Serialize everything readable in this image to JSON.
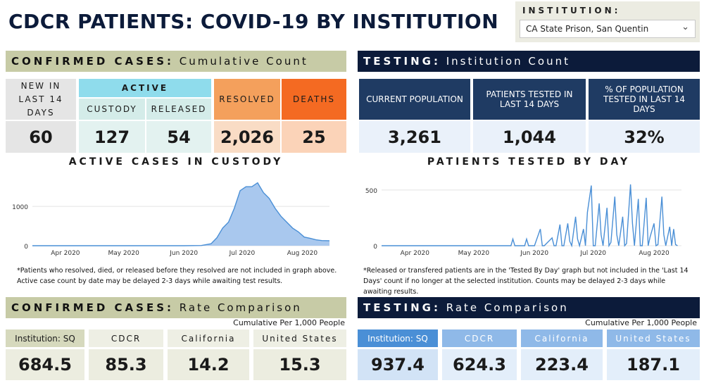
{
  "header": {
    "title": "CDCR PATIENTS: COVID-19 BY INSTITUTION"
  },
  "institution": {
    "label": "INSTITUTION:",
    "selected": "CA State Prison, San Quentin"
  },
  "confirmed": {
    "band_bold": "CONFIRMED CASES:",
    "band_light": "Cumulative Count",
    "new14_label": "NEW IN LAST 14 DAYS",
    "new14_value": "60",
    "active_label": "ACTIVE",
    "custody_label": "CUSTODY",
    "custody_value": "127",
    "released_label": "RELEASED",
    "released_value": "54",
    "resolved_label": "RESOLVED",
    "resolved_value": "2,026",
    "deaths_label": "DEATHS",
    "deaths_value": "25"
  },
  "testing": {
    "band_bold": "TESTING:",
    "band_light": "Institution Count",
    "pop_label": "CURRENT POPULATION",
    "pop_value": "3,261",
    "tested_label": "PATIENTS TESTED IN LAST 14 DAYS",
    "tested_value": "1,044",
    "pct_label": "% OF POPULATION TESTED IN LAST 14 DAYS",
    "pct_value": "32%"
  },
  "charts": {
    "active_title": "ACTIVE CASES IN CUSTODY",
    "tested_title": "PATIENTS TESTED BY DAY",
    "active_note": "*Patients who resolved, died, or released before they resolved are not included in graph above. Active case count by date may be delayed 2-3 days while awaiting test results.",
    "tested_note": "*Released or transfered patients are in the 'Tested By Day' graph but not included in the 'Last 14 Days' count if no longer at the selected institution.  Counts may be delayed 2-3 days while awaiting results."
  },
  "chart_data": [
    {
      "type": "area",
      "title": "ACTIVE CASES IN CUSTODY",
      "x_ticks": [
        "Apr 2020",
        "May 2020",
        "Jun 2020",
        "Jul 2020",
        "Aug 2020"
      ],
      "y_ticks": [
        0,
        1000
      ],
      "ylim": [
        0,
        1700
      ],
      "x": [
        "2020-03-15",
        "2020-04-01",
        "2020-05-01",
        "2020-06-01",
        "2020-06-10",
        "2020-06-15",
        "2020-06-18",
        "2020-06-21",
        "2020-06-24",
        "2020-06-27",
        "2020-06-30",
        "2020-07-03",
        "2020-07-06",
        "2020-07-09",
        "2020-07-12",
        "2020-07-15",
        "2020-07-18",
        "2020-07-21",
        "2020-07-24",
        "2020-07-27",
        "2020-07-30",
        "2020-08-02",
        "2020-08-05",
        "2020-08-08",
        "2020-08-11",
        "2020-08-15"
      ],
      "values": [
        0,
        0,
        0,
        0,
        5,
        50,
        200,
        450,
        600,
        950,
        1400,
        1500,
        1500,
        1600,
        1350,
        1200,
        950,
        750,
        600,
        450,
        350,
        220,
        190,
        150,
        130,
        127
      ]
    },
    {
      "type": "line",
      "title": "PATIENTS TESTED BY DAY",
      "x_ticks": [
        "Apr 2020",
        "May 2020",
        "Jun 2020",
        "Jul 2020",
        "Aug 2020"
      ],
      "y_ticks": [
        0,
        500
      ],
      "ylim": [
        0,
        600
      ],
      "x": [
        "2020-03-15",
        "2020-05-15",
        "2020-05-20",
        "2020-05-21",
        "2020-05-22",
        "2020-05-27",
        "2020-05-28",
        "2020-05-29",
        "2020-06-01",
        "2020-06-04",
        "2020-06-05",
        "2020-06-06",
        "2020-06-10",
        "2020-06-11",
        "2020-06-12",
        "2020-06-14",
        "2020-06-15",
        "2020-06-16",
        "2020-06-18",
        "2020-06-19",
        "2020-06-20",
        "2020-06-22",
        "2020-06-23",
        "2020-06-24",
        "2020-06-26",
        "2020-06-27",
        "2020-06-28",
        "2020-06-30",
        "2020-07-01",
        "2020-07-02",
        "2020-07-04",
        "2020-07-05",
        "2020-07-06",
        "2020-07-08",
        "2020-07-09",
        "2020-07-10",
        "2020-07-12",
        "2020-07-13",
        "2020-07-14",
        "2020-07-16",
        "2020-07-17",
        "2020-07-18",
        "2020-07-20",
        "2020-07-21",
        "2020-07-22",
        "2020-07-24",
        "2020-07-25",
        "2020-07-26",
        "2020-07-28",
        "2020-07-29",
        "2020-07-30",
        "2020-08-01",
        "2020-08-02",
        "2020-08-03",
        "2020-08-05",
        "2020-08-06",
        "2020-08-07",
        "2020-08-09",
        "2020-08-10",
        "2020-08-11",
        "2020-08-12",
        "2020-08-13"
      ],
      "values": [
        0,
        0,
        0,
        60,
        0,
        0,
        60,
        0,
        0,
        150,
        0,
        0,
        70,
        0,
        0,
        190,
        0,
        0,
        200,
        40,
        0,
        260,
        60,
        0,
        150,
        0,
        300,
        540,
        0,
        0,
        380,
        100,
        0,
        340,
        0,
        30,
        440,
        100,
        0,
        260,
        0,
        20,
        550,
        200,
        0,
        420,
        0,
        0,
        430,
        0,
        80,
        200,
        0,
        10,
        440,
        100,
        0,
        170,
        0,
        150,
        10,
        0
      ]
    }
  ],
  "rates": {
    "confirmed_bold": "CONFIRMED CASES:",
    "confirmed_light": "Rate Comparison",
    "testing_bold": "TESTING:",
    "testing_light": "Rate Comparison",
    "per_label": "Cumulative Per 1,000 People",
    "inst_label": "Institution: SQ",
    "cdcr_label": "CDCR",
    "ca_label": "California",
    "us_label": "United States",
    "confirmed_values": [
      "684.5",
      "85.3",
      "14.2",
      "15.3"
    ],
    "testing_values": [
      "937.4",
      "624.3",
      "223.4",
      "187.1"
    ]
  },
  "colors": {
    "navy": "#0c1b3a",
    "olive": "#c7cba6",
    "cyan": "#8fdcec",
    "orange_light": "#f4a05c",
    "orange_dark": "#f46a22",
    "testing_label": "#1f3b63",
    "testing_value": "#eaf1fa",
    "chart_line": "#4a8fd6",
    "chart_fill": "#a9c8ee"
  }
}
